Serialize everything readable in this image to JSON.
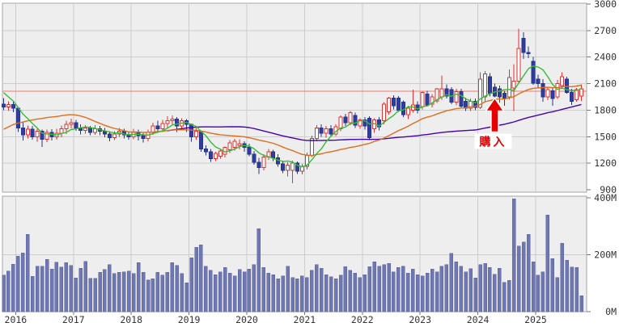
{
  "chart_data": {
    "type": "candlestick",
    "description": "Monthly candlestick stock chart with volume subpanel, 2016-2025",
    "legend_position": "none",
    "grid": true,
    "price_axis": {
      "min": 900,
      "max": 3000,
      "ticks": [
        3000,
        2700,
        2400,
        2100,
        1800,
        1500,
        1200,
        900
      ],
      "tick_labels": [
        "3000",
        "2700",
        "2400",
        "2100",
        "1800",
        "1500",
        "1200",
        "900"
      ]
    },
    "volume_axis": {
      "min": 0,
      "max": 400,
      "unit": "M",
      "ticks": [
        400,
        200,
        0
      ],
      "tick_labels": [
        "400M",
        "200M",
        "0M"
      ]
    },
    "x_axis": {
      "start_month": "2015-10",
      "months_shown": 121,
      "year_labels": [
        "2016",
        "2017",
        "2018",
        "2019",
        "2020",
        "2021",
        "2022",
        "2023",
        "2024",
        "2025"
      ],
      "first_january_index": 3,
      "months_per_year": 12
    },
    "candles_format": [
      "open",
      "high",
      "low",
      "close",
      "volume_millions"
    ],
    "candles": [
      [
        1870,
        1935,
        1800,
        1835,
        129
      ],
      [
        1835,
        1900,
        1795,
        1865,
        143
      ],
      [
        1865,
        1895,
        1775,
        1820,
        167
      ],
      [
        1820,
        1835,
        1555,
        1600,
        195
      ],
      [
        1600,
        1665,
        1455,
        1520,
        207
      ],
      [
        1520,
        1625,
        1480,
        1585,
        271
      ],
      [
        1585,
        1620,
        1465,
        1500,
        124
      ],
      [
        1500,
        1590,
        1445,
        1560,
        159
      ],
      [
        1560,
        1580,
        1385,
        1470,
        159
      ],
      [
        1470,
        1580,
        1440,
        1550,
        183
      ],
      [
        1550,
        1585,
        1455,
        1500,
        150
      ],
      [
        1500,
        1590,
        1465,
        1540,
        174
      ],
      [
        1540,
        1625,
        1495,
        1590,
        157
      ],
      [
        1590,
        1680,
        1530,
        1640,
        173
      ],
      [
        1640,
        1705,
        1595,
        1660,
        162
      ],
      [
        1660,
        1690,
        1565,
        1600,
        119
      ],
      [
        1600,
        1640,
        1525,
        1570,
        152
      ],
      [
        1570,
        1630,
        1535,
        1600,
        176
      ],
      [
        1600,
        1620,
        1515,
        1550,
        117
      ],
      [
        1550,
        1630,
        1520,
        1590,
        117
      ],
      [
        1590,
        1620,
        1515,
        1560,
        139
      ],
      [
        1560,
        1600,
        1495,
        1530,
        148
      ],
      [
        1530,
        1560,
        1450,
        1490,
        165
      ],
      [
        1490,
        1560,
        1460,
        1530,
        134
      ],
      [
        1530,
        1600,
        1500,
        1560,
        139
      ],
      [
        1560,
        1590,
        1480,
        1520,
        140
      ],
      [
        1520,
        1560,
        1465,
        1500,
        143
      ],
      [
        1500,
        1590,
        1470,
        1550,
        134
      ],
      [
        1550,
        1580,
        1455,
        1510,
        172
      ],
      [
        1510,
        1540,
        1435,
        1480,
        139
      ],
      [
        1480,
        1580,
        1450,
        1550,
        112
      ],
      [
        1550,
        1660,
        1520,
        1620,
        115
      ],
      [
        1620,
        1680,
        1545,
        1590,
        139
      ],
      [
        1590,
        1690,
        1555,
        1650,
        129
      ],
      [
        1650,
        1730,
        1595,
        1680,
        139
      ],
      [
        1680,
        1740,
        1635,
        1700,
        172
      ],
      [
        1700,
        1720,
        1555,
        1620,
        162
      ],
      [
        1620,
        1710,
        1575,
        1680,
        134
      ],
      [
        1680,
        1700,
        1555,
        1640,
        101
      ],
      [
        1640,
        1650,
        1445,
        1500,
        190
      ],
      [
        1500,
        1600,
        1465,
        1560,
        226
      ],
      [
        1560,
        1570,
        1330,
        1360,
        235
      ],
      [
        1360,
        1400,
        1290,
        1330,
        160
      ],
      [
        1330,
        1360,
        1215,
        1250,
        145
      ],
      [
        1250,
        1330,
        1225,
        1310,
        130
      ],
      [
        1280,
        1355,
        1250,
        1340,
        140
      ],
      [
        1300,
        1390,
        1265,
        1380,
        155
      ],
      [
        1350,
        1460,
        1315,
        1430,
        135
      ],
      [
        1380,
        1475,
        1345,
        1450,
        125
      ],
      [
        1400,
        1470,
        1355,
        1420,
        148
      ],
      [
        1420,
        1450,
        1330,
        1380,
        140
      ],
      [
        1380,
        1420,
        1280,
        1300,
        150
      ],
      [
        1300,
        1340,
        1185,
        1210,
        165
      ],
      [
        1210,
        1260,
        1080,
        1150,
        291
      ],
      [
        1150,
        1300,
        1120,
        1270,
        155
      ],
      [
        1270,
        1360,
        1240,
        1330,
        135
      ],
      [
        1330,
        1350,
        1225,
        1260,
        130
      ],
      [
        1260,
        1300,
        1160,
        1190,
        115
      ],
      [
        1190,
        1230,
        1085,
        1120,
        125
      ],
      [
        1120,
        1210,
        1050,
        1180,
        160
      ],
      [
        1120,
        1230,
        975,
        1200,
        120
      ],
      [
        1200,
        1220,
        1080,
        1110,
        115
      ],
      [
        1110,
        1190,
        1075,
        1165,
        125
      ],
      [
        1165,
        1320,
        1130,
        1290,
        120
      ],
      [
        1290,
        1510,
        1270,
        1480,
        145
      ],
      [
        1480,
        1630,
        1450,
        1600,
        165
      ],
      [
        1600,
        1640,
        1500,
        1540,
        152
      ],
      [
        1540,
        1620,
        1490,
        1590,
        130
      ],
      [
        1590,
        1630,
        1500,
        1530,
        122
      ],
      [
        1530,
        1640,
        1505,
        1610,
        115
      ],
      [
        1590,
        1740,
        1560,
        1720,
        128
      ],
      [
        1720,
        1760,
        1620,
        1660,
        158
      ],
      [
        1660,
        1790,
        1630,
        1770,
        145
      ],
      [
        1740,
        1770,
        1600,
        1630,
        135
      ],
      [
        1620,
        1710,
        1590,
        1690,
        120
      ],
      [
        1690,
        1720,
        1580,
        1620,
        130
      ],
      [
        1710,
        1730,
        1460,
        1490,
        158
      ],
      [
        1590,
        1710,
        1545,
        1690,
        175
      ],
      [
        1690,
        1720,
        1570,
        1610,
        160
      ],
      [
        1680,
        1890,
        1640,
        1870,
        165
      ],
      [
        1780,
        1950,
        1750,
        1935,
        170
      ],
      [
        1935,
        1970,
        1810,
        1850,
        140
      ],
      [
        1935,
        1960,
        1780,
        1800,
        155
      ],
      [
        1890,
        1910,
        1720,
        1750,
        160
      ],
      [
        1750,
        1850,
        1700,
        1820,
        135
      ],
      [
        1800,
        2030,
        1770,
        1860,
        150
      ],
      [
        1860,
        1900,
        1765,
        1800,
        130
      ],
      [
        1840,
        2010,
        1810,
        2000,
        125
      ],
      [
        1980,
        2020,
        1840,
        1860,
        135
      ],
      [
        1870,
        1980,
        1830,
        1950,
        150
      ],
      [
        1905,
        2050,
        1880,
        2040,
        140
      ],
      [
        1950,
        2190,
        1920,
        2040,
        160
      ],
      [
        2040,
        2090,
        1930,
        1960,
        165
      ],
      [
        2030,
        2060,
        1870,
        1890,
        205
      ],
      [
        1890,
        2040,
        1855,
        2010,
        175
      ],
      [
        2010,
        2040,
        1820,
        1845,
        160
      ],
      [
        1900,
        1940,
        1790,
        1820,
        140
      ],
      [
        1820,
        1930,
        1790,
        1900,
        151
      ],
      [
        1900,
        1930,
        1800,
        1830,
        118
      ],
      [
        1830,
        2230,
        1815,
        2150,
        165
      ],
      [
        1950,
        2240,
        1900,
        2210,
        169
      ],
      [
        2180,
        2220,
        1955,
        1990,
        156
      ],
      [
        2060,
        2100,
        1900,
        1960,
        131
      ],
      [
        2040,
        2080,
        1885,
        1950,
        153
      ],
      [
        1990,
        2020,
        1850,
        1930,
        103
      ],
      [
        1950,
        2260,
        1920,
        2170,
        110
      ],
      [
        2050,
        2320,
        1790,
        2130,
        396
      ],
      [
        2130,
        2720,
        2100,
        2500,
        230
      ],
      [
        2610,
        2680,
        2380,
        2450,
        245
      ],
      [
        2450,
        2520,
        2390,
        2440,
        271
      ],
      [
        2350,
        2400,
        2085,
        2105,
        175
      ],
      [
        2150,
        2200,
        2050,
        2100,
        129
      ],
      [
        2100,
        2150,
        1895,
        1950,
        140
      ],
      [
        1950,
        2060,
        1915,
        2030,
        340
      ],
      [
        2020,
        2050,
        1850,
        1930,
        186
      ],
      [
        1950,
        2140,
        1925,
        2100,
        120
      ],
      [
        2080,
        2230,
        2045,
        2180,
        240
      ],
      [
        2150,
        2180,
        1985,
        2000,
        181
      ],
      [
        2000,
        2040,
        1860,
        1900,
        157
      ],
      [
        1920,
        2050,
        1895,
        2030,
        156
      ],
      [
        1960,
        2090,
        1905,
        2040,
        56
      ]
    ],
    "moving_averages": [
      {
        "name": "long-ma",
        "window": 60,
        "color": "#4403ad"
      },
      {
        "name": "mid-ma",
        "window": 24,
        "color": "#dd6e1c"
      },
      {
        "name": "short-ma",
        "window": 6,
        "color": "#36bd36"
      }
    ],
    "prehistory_closes": [
      1150,
      1180,
      1200,
      1180,
      1220,
      1250,
      1230,
      1280,
      1300,
      1320,
      1300,
      1350,
      1400,
      1380,
      1450,
      1550,
      1700,
      1850,
      1980,
      2080,
      2150,
      2100,
      2040,
      1960,
      1900
    ],
    "reference_line": {
      "price": 2015,
      "color": "#f4796b"
    },
    "annotation": {
      "text": "購入",
      "month_index": 102,
      "arrow_color": "#e60000",
      "text_color": "#e60000",
      "box_color": "#ffffff"
    },
    "colors": {
      "plot_background": "#eeeeee",
      "grid": "#cccccc",
      "panel_border": "#a6a6a6",
      "up_candle_stroke": "#e03232",
      "up_candle_fill": "#ffffff",
      "down_candle_fill": "#2f3e9e",
      "down_candle_stroke": "#273489",
      "volume_bar": "#6f77b3",
      "volume_bar_stroke": "#5c64a0",
      "axis_text": "#333333",
      "tick_mark": "#777777"
    }
  }
}
